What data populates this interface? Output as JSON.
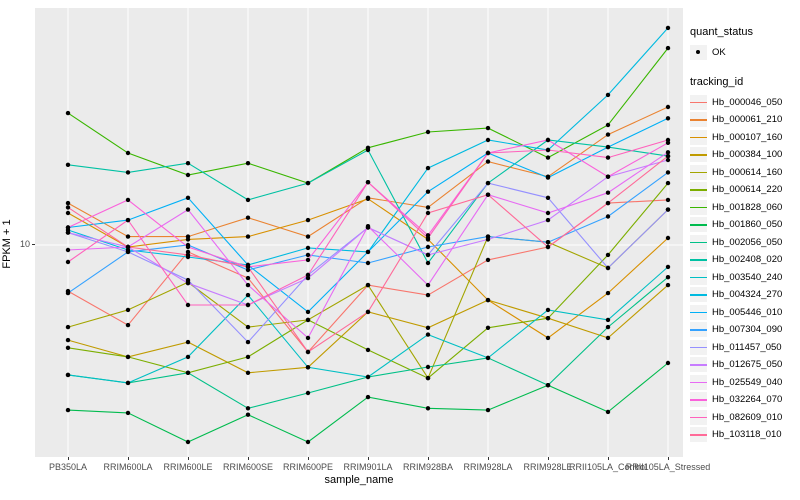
{
  "figure": {
    "xlabel": "sample_name",
    "ylabel": "FPKM + 1",
    "y_tick_label": "10",
    "legend": {
      "quant_title": "quant_status",
      "quant_items": [
        {
          "label": "OK",
          "marker": "black-point"
        }
      ],
      "tracking_title": "tracking_id"
    }
  },
  "chart_data": {
    "type": "line",
    "title": "",
    "xlabel": "sample_name",
    "ylabel": "FPKM + 1",
    "yscale": "log10",
    "ylim": [
      2.4,
      48
    ],
    "y_major_gridline": 10,
    "grid": "white-on-gray-panel",
    "panel_background": "#EBEBEB",
    "point_color": "#000000",
    "legend_position": "right",
    "categories": [
      "PB350LA",
      "RRIM600LA",
      "RRIM600LE",
      "RRIM600SE",
      "RRIM600PE",
      "RRIM901LA",
      "RRIM928BA",
      "RRIM928LA",
      "RRIM928LE",
      "RRII105LA_Control",
      "RRII105LA_Stressed"
    ],
    "series": [
      {
        "name": "Hb_000046_050",
        "color": "#F8766D",
        "values": [
          7.25,
          5.72,
          9.53,
          7.94,
          4.74,
          7.56,
          7.05,
          9.01,
          9.86,
          13.4,
          13.7
        ]
      },
      {
        "name": "Hb_000061_210",
        "color": "#EA8331",
        "values": [
          13.4,
          10.6,
          10.6,
          12.1,
          10.6,
          13.9,
          13.0,
          17.9,
          16.1,
          21.6,
          26.2
        ]
      },
      {
        "name": "Hb_000107_160",
        "color": "#D89000",
        "values": [
          12.5,
          9.86,
          10.4,
          10.6,
          11.9,
          13.8,
          10.4,
          6.81,
          5.23,
          7.15,
          10.5
        ]
      },
      {
        "name": "Hb_000384_100",
        "color": "#C09B00",
        "values": [
          5.15,
          4.58,
          5.08,
          4.1,
          4.26,
          6.27,
          5.61,
          6.81,
          6.0,
          5.23,
          7.56
        ]
      },
      {
        "name": "Hb_000614_160",
        "color": "#A3A500",
        "values": [
          5.64,
          6.36,
          7.71,
          5.64,
          5.93,
          7.56,
          3.95,
          10.6,
          10.2,
          8.52,
          12.8
        ]
      },
      {
        "name": "Hb_000614_220",
        "color": "#7CAE00",
        "values": [
          4.88,
          4.58,
          4.1,
          4.58,
          5.93,
          4.81,
          3.95,
          5.61,
          6.0,
          9.33,
          15.4
        ]
      },
      {
        "name": "Hb_001828_060",
        "color": "#39B600",
        "values": [
          25.1,
          19.0,
          16.3,
          17.7,
          15.4,
          19.7,
          22.0,
          22.6,
          18.4,
          23.1,
          39.5
        ]
      },
      {
        "name": "Hb_001860_050",
        "color": "#00BB4E",
        "values": [
          3.16,
          3.1,
          2.53,
          3.06,
          2.53,
          3.46,
          3.2,
          3.16,
          3.76,
          3.12,
          4.39
        ]
      },
      {
        "name": "Hb_002056_050",
        "color": "#00C087",
        "values": [
          4.04,
          3.82,
          4.1,
          3.2,
          3.56,
          3.98,
          4.27,
          4.55,
          3.76,
          5.64,
          7.99
        ]
      },
      {
        "name": "Hb_002408_020",
        "color": "#00C1A3",
        "values": [
          17.5,
          16.6,
          17.7,
          13.7,
          15.4,
          19.4,
          8.82,
          15.4,
          20.8,
          19.8,
          18.6
        ]
      },
      {
        "name": "Hb_003540_240",
        "color": "#00BFC4",
        "values": [
          4.04,
          3.82,
          4.58,
          7.05,
          4.26,
          3.98,
          5.35,
          4.55,
          6.36,
          5.93,
          8.58
        ]
      },
      {
        "name": "Hb_004324_270",
        "color": "#00BAE0",
        "values": [
          11.1,
          9.66,
          9.2,
          8.7,
          9.8,
          9.53,
          17.1,
          20.8,
          19.4,
          28.5,
          45.5
        ]
      },
      {
        "name": "Hb_005446_010",
        "color": "#00B0F6",
        "values": [
          11.3,
          11.9,
          13.9,
          8.7,
          6.27,
          9.53,
          14.5,
          19.0,
          16.0,
          19.8,
          24.2
        ]
      },
      {
        "name": "Hb_007304_090",
        "color": "#35A2FF",
        "values": [
          7.15,
          9.53,
          10.0,
          8.4,
          9.33,
          8.82,
          9.86,
          10.6,
          10.2,
          12.2,
          16.6
        ]
      },
      {
        "name": "Hb_011457_050",
        "color": "#9590FF",
        "values": [
          10.9,
          9.53,
          7.83,
          5.08,
          8.11,
          11.3,
          9.33,
          15.4,
          13.9,
          8.52,
          12.8
        ]
      },
      {
        "name": "Hb_012675_050",
        "color": "#C77CFF",
        "values": [
          10.9,
          9.86,
          7.66,
          6.58,
          7.94,
          11.3,
          9.33,
          10.4,
          11.9,
          16.1,
          18.1
        ]
      },
      {
        "name": "Hb_025549_040",
        "color": "#E76BF3",
        "values": [
          9.66,
          9.86,
          12.8,
          7.56,
          5.23,
          11.4,
          7.56,
          14.2,
          12.5,
          14.4,
          19.1
        ]
      },
      {
        "name": "Hb_032264_070",
        "color": "#FA62DB",
        "values": [
          11.3,
          13.7,
          9.86,
          8.58,
          9.01,
          15.5,
          10.7,
          19.0,
          20.8,
          16.1,
          20.4
        ]
      },
      {
        "name": "Hb_082609_010",
        "color": "#FF62BC",
        "values": [
          8.88,
          11.9,
          6.58,
          6.58,
          8.11,
          15.5,
          10.5,
          19.0,
          19.4,
          18.4,
          20.8
        ]
      },
      {
        "name": "Hb_103118_010",
        "color": "#FF6A98",
        "values": [
          13.0,
          9.86,
          9.33,
          8.58,
          4.74,
          6.27,
          12.5,
          14.2,
          9.86,
          13.4,
          18.6
        ]
      }
    ]
  }
}
